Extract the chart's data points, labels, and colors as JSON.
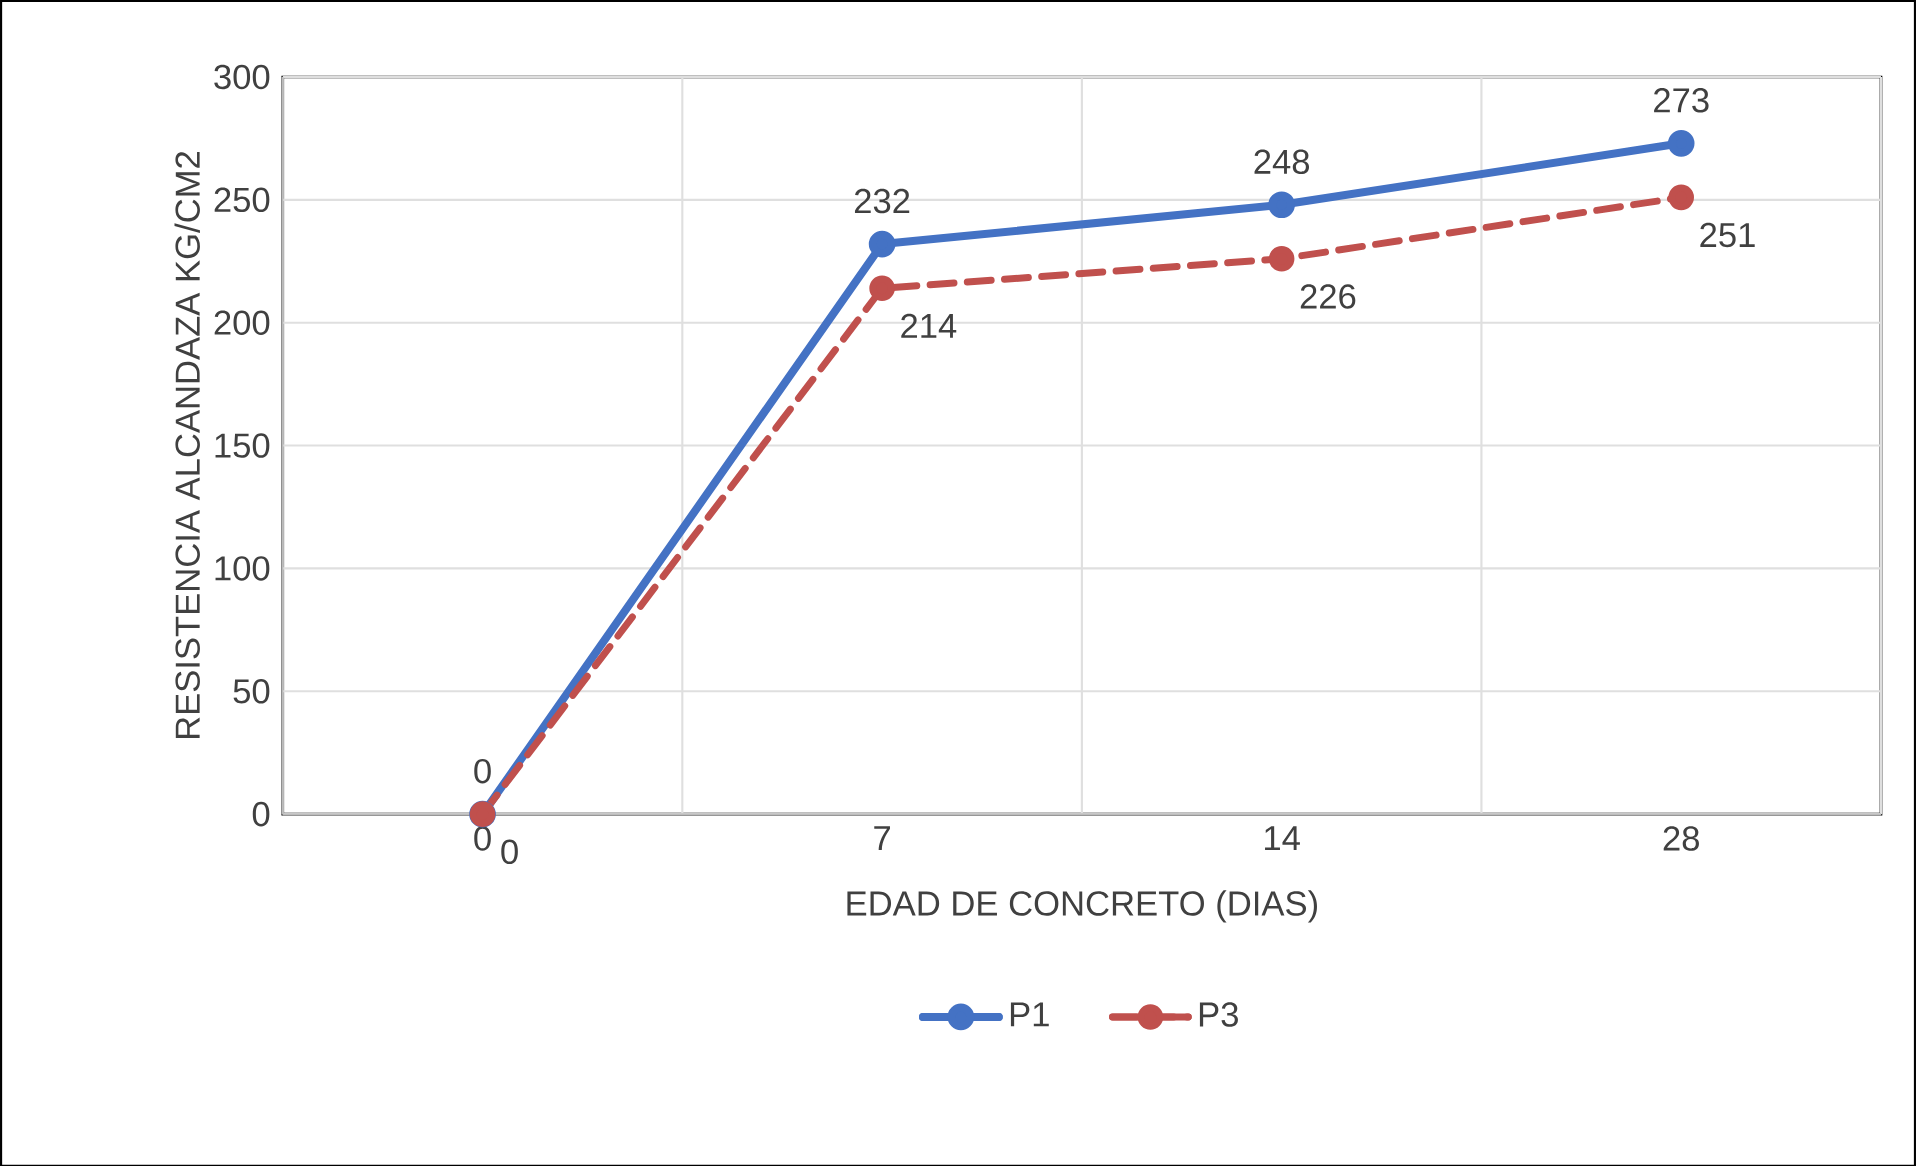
{
  "chart_data": {
    "type": "line",
    "xlabel": "EDAD  DE CONCRETO  (DIAS)",
    "ylabel": "RESISTENCIA  ALCANDAZA  KG/CM2",
    "categories": [
      "0",
      "7",
      "14",
      "28"
    ],
    "series": [
      {
        "name": "P1",
        "color": "#4472c4",
        "values": [
          0,
          232,
          248,
          273
        ],
        "line_style": "solid"
      },
      {
        "name": "P3",
        "color": "#c0504d",
        "values": [
          0,
          214,
          226,
          251
        ],
        "line_style": "dashed"
      }
    ],
    "ylim": [
      0,
      300
    ],
    "yticks": [
      0,
      50,
      100,
      150,
      200,
      250,
      300
    ],
    "grid": true,
    "legend": "bottom",
    "marker": "circle",
    "data_labels": true
  }
}
